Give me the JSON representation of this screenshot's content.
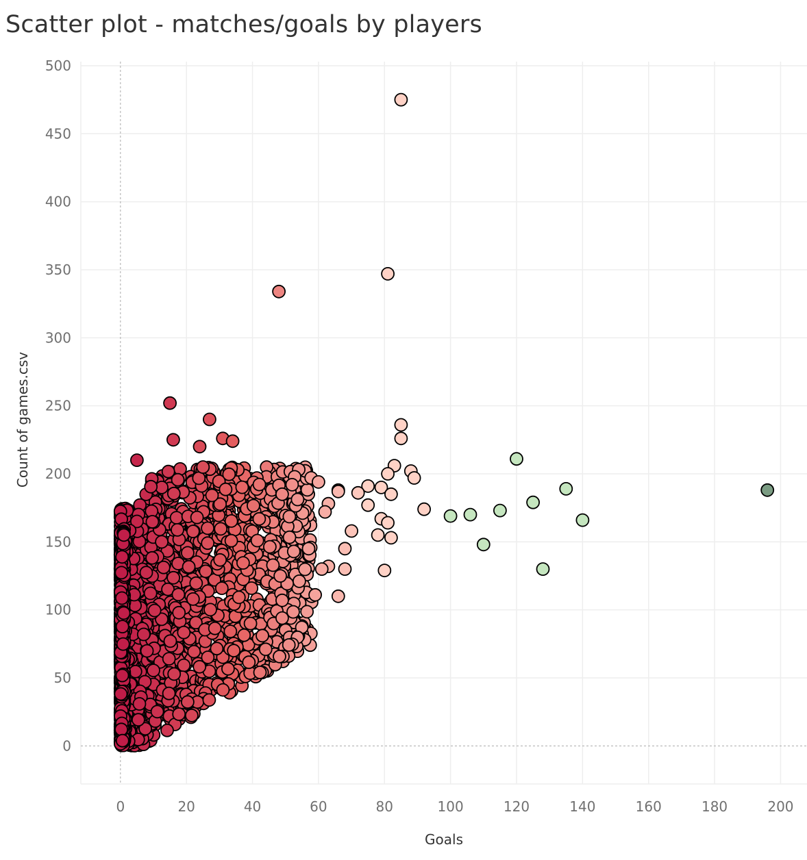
{
  "chart_data": {
    "type": "scatter",
    "title": "Scatter plot - matches/goals by players",
    "xlabel": "Goals",
    "ylabel": "Count of games.csv",
    "xlim": [
      -12,
      208
    ],
    "ylim": [
      -28,
      503
    ],
    "xticks": [
      0,
      20,
      40,
      60,
      80,
      100,
      120,
      140,
      160,
      180,
      200
    ],
    "yticks": [
      0,
      50,
      100,
      150,
      200,
      250,
      300,
      350,
      400,
      450,
      500
    ],
    "grid": true,
    "legend": "none",
    "color_scale": {
      "low_red": "#c01c48",
      "mid_red": "#e56060",
      "pale_pink": "#ffd2c6",
      "light_green": "#c5e6bf",
      "dark_green": "#7b9c83"
    },
    "points": [
      {
        "x": 85,
        "y": 475
      },
      {
        "x": 81,
        "y": 347
      },
      {
        "x": 48,
        "y": 334
      },
      {
        "x": 15,
        "y": 252
      },
      {
        "x": 27,
        "y": 240
      },
      {
        "x": 85,
        "y": 236
      },
      {
        "x": 85,
        "y": 226
      },
      {
        "x": 16,
        "y": 225
      },
      {
        "x": 31,
        "y": 226
      },
      {
        "x": 34,
        "y": 224
      },
      {
        "x": 24,
        "y": 220
      },
      {
        "x": 120,
        "y": 211
      },
      {
        "x": 5,
        "y": 210
      },
      {
        "x": 83,
        "y": 206
      },
      {
        "x": 25,
        "y": 205
      },
      {
        "x": 88,
        "y": 202
      },
      {
        "x": 81,
        "y": 200
      },
      {
        "x": 89,
        "y": 197
      },
      {
        "x": 60,
        "y": 194
      },
      {
        "x": 52,
        "y": 192
      },
      {
        "x": 75,
        "y": 191
      },
      {
        "x": 79,
        "y": 190
      },
      {
        "x": 135,
        "y": 189
      },
      {
        "x": 196,
        "y": 188
      },
      {
        "x": 66,
        "y": 188
      },
      {
        "x": 66,
        "y": 187
      },
      {
        "x": 72,
        "y": 186
      },
      {
        "x": 82,
        "y": 185
      },
      {
        "x": 49,
        "y": 185
      },
      {
        "x": 125,
        "y": 179
      },
      {
        "x": 63,
        "y": 178
      },
      {
        "x": 75,
        "y": 177
      },
      {
        "x": 92,
        "y": 174
      },
      {
        "x": 115,
        "y": 173
      },
      {
        "x": 106,
        "y": 170
      },
      {
        "x": 100,
        "y": 169
      },
      {
        "x": 79,
        "y": 167
      },
      {
        "x": 140,
        "y": 166
      },
      {
        "x": 81,
        "y": 164
      },
      {
        "x": 78,
        "y": 155
      },
      {
        "x": 82,
        "y": 153
      },
      {
        "x": 110,
        "y": 148
      },
      {
        "x": 68,
        "y": 145
      },
      {
        "x": 128,
        "y": 130
      },
      {
        "x": 80,
        "y": 129
      },
      {
        "x": 68,
        "y": 130
      },
      {
        "x": 59,
        "y": 111
      },
      {
        "x": 66,
        "y": 110
      },
      {
        "x": 49,
        "y": 107
      },
      {
        "x": 49,
        "y": 94
      },
      {
        "x": 43,
        "y": 81
      },
      {
        "x": 44,
        "y": 71
      },
      {
        "x": 63,
        "y": 132
      },
      {
        "x": 57,
        "y": 145
      },
      {
        "x": 61,
        "y": 130
      },
      {
        "x": 70,
        "y": 158
      },
      {
        "x": 62,
        "y": 172
      }
    ],
    "approx_dense_cloud": "many players with 0-60 goals and 0-200 games"
  }
}
